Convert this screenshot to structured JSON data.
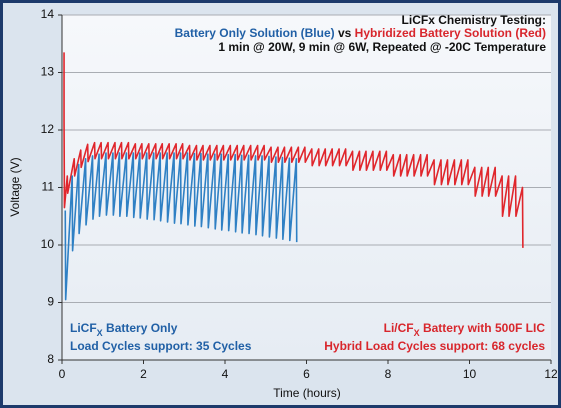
{
  "chart_data": {
    "type": "line",
    "title": "LiCFx Chemistry Testing:",
    "subtitle": [
      {
        "text": "Battery Only Solution (Blue)",
        "color": "#2160a6"
      },
      {
        "text": " vs ",
        "color": "#111111"
      },
      {
        "text": "Hybridized Battery Solution (Red)",
        "color": "#d8262c"
      }
    ],
    "subtitle2": "1 min @ 20W, 9 min @ 6W, Repeated @ -20C Temperature",
    "xlabel": "Time (hours)",
    "ylabel": "Voltage (V)",
    "xlim": [
      0,
      12
    ],
    "ylim": [
      8,
      14
    ],
    "xticks": [
      0,
      2,
      4,
      6,
      8,
      10,
      12
    ],
    "yticks": [
      8,
      9,
      10,
      11,
      12,
      13,
      14
    ],
    "grid": true,
    "annotations": [
      {
        "corner": "bottom-left",
        "color": "#2160a6",
        "lines": [
          [
            {
              "text": "LiCF"
            },
            {
              "text": "X",
              "sub": true
            },
            {
              "text": " Battery Only"
            }
          ],
          [
            {
              "text": "Load Cycles support: 35 Cycles"
            }
          ]
        ]
      },
      {
        "corner": "bottom-right",
        "color": "#d8262c",
        "lines": [
          [
            {
              "text": "Li/CF"
            },
            {
              "text": "X",
              "sub": true
            },
            {
              "text": " Battery with 500F LIC"
            }
          ],
          [
            {
              "text": "Hybrid Load Cycles support: 68 cycles"
            }
          ]
        ]
      }
    ],
    "series": [
      {
        "name": "Hybridized Battery Solution (Red)",
        "color": "#e0262c",
        "x": [
          0.05,
          0.05,
          0.06,
          0.13,
          0.14,
          0.3,
          0.31,
          0.46,
          0.47,
          0.63,
          0.64,
          0.8,
          0.81,
          0.96,
          0.97,
          1.13,
          1.14,
          1.3,
          1.31,
          1.46,
          1.47,
          1.63,
          1.64,
          1.8,
          1.81,
          1.96,
          1.97,
          2.13,
          2.14,
          2.3,
          2.31,
          2.46,
          2.47,
          2.63,
          2.64,
          2.8,
          2.81,
          2.96,
          2.97,
          3.13,
          3.14,
          3.3,
          3.31,
          3.46,
          3.47,
          3.63,
          3.64,
          3.8,
          3.81,
          3.96,
          3.97,
          4.13,
          4.14,
          4.3,
          4.31,
          4.46,
          4.47,
          4.63,
          4.64,
          4.8,
          4.81,
          4.96,
          4.97,
          5.13,
          5.14,
          5.3,
          5.31,
          5.46,
          5.47,
          5.63,
          5.64,
          5.8,
          5.81,
          5.96,
          5.97,
          6.13,
          6.14,
          6.3,
          6.31,
          6.46,
          6.47,
          6.63,
          6.64,
          6.8,
          6.81,
          6.96,
          6.97,
          7.13,
          7.14,
          7.3,
          7.31,
          7.46,
          7.47,
          7.63,
          7.64,
          7.8,
          7.81,
          7.96,
          7.97,
          8.13,
          8.14,
          8.3,
          8.31,
          8.46,
          8.47,
          8.63,
          8.64,
          8.8,
          8.81,
          8.96,
          8.97,
          9.13,
          9.14,
          9.3,
          9.31,
          9.46,
          9.47,
          9.63,
          9.64,
          9.8,
          9.81,
          9.96,
          9.97,
          10.13,
          10.14,
          10.3,
          10.31,
          10.46,
          10.47,
          10.63,
          10.64,
          10.8,
          10.81,
          10.96,
          10.97,
          11.13,
          11.14,
          11.3,
          11.31
        ],
        "values": [
          13.35,
          12.15,
          10.65,
          11.2,
          10.9,
          11.5,
          11.2,
          11.65,
          11.35,
          11.75,
          11.45,
          11.78,
          11.5,
          11.78,
          11.5,
          11.78,
          11.5,
          11.78,
          11.5,
          11.78,
          11.5,
          11.78,
          11.5,
          11.76,
          11.5,
          11.76,
          11.5,
          11.76,
          11.5,
          11.76,
          11.5,
          11.76,
          11.5,
          11.76,
          11.5,
          11.76,
          11.5,
          11.76,
          11.5,
          11.73,
          11.48,
          11.73,
          11.48,
          11.73,
          11.48,
          11.73,
          11.48,
          11.73,
          11.48,
          11.73,
          11.48,
          11.73,
          11.48,
          11.73,
          11.48,
          11.73,
          11.48,
          11.73,
          11.48,
          11.73,
          11.48,
          11.73,
          11.48,
          11.7,
          11.44,
          11.7,
          11.44,
          11.7,
          11.44,
          11.7,
          11.44,
          11.7,
          11.44,
          11.7,
          11.44,
          11.67,
          11.38,
          11.67,
          11.38,
          11.67,
          11.38,
          11.67,
          11.38,
          11.67,
          11.38,
          11.67,
          11.38,
          11.63,
          11.3,
          11.63,
          11.3,
          11.63,
          11.3,
          11.63,
          11.3,
          11.63,
          11.3,
          11.63,
          11.3,
          11.57,
          11.2,
          11.57,
          11.2,
          11.57,
          11.2,
          11.57,
          11.2,
          11.57,
          11.2,
          11.57,
          11.2,
          11.48,
          11.05,
          11.48,
          11.05,
          11.48,
          11.05,
          11.48,
          11.05,
          11.48,
          11.05,
          11.48,
          11.05,
          11.35,
          10.85,
          11.35,
          10.85,
          11.35,
          10.85,
          11.35,
          10.85,
          11.2,
          10.5,
          11.2,
          10.5,
          11.2,
          10.5,
          11.0,
          9.95
        ]
      },
      {
        "name": "Battery Only Solution (Blue)",
        "color": "#2f80c4",
        "x": [
          0.08,
          0.09,
          0.25,
          0.26,
          0.41,
          0.42,
          0.58,
          0.59,
          0.75,
          0.76,
          0.91,
          0.92,
          1.08,
          1.09,
          1.25,
          1.26,
          1.41,
          1.42,
          1.58,
          1.59,
          1.75,
          1.76,
          1.91,
          1.92,
          2.08,
          2.09,
          2.25,
          2.26,
          2.41,
          2.42,
          2.58,
          2.59,
          2.75,
          2.76,
          2.91,
          2.92,
          3.08,
          3.09,
          3.25,
          3.26,
          3.41,
          3.42,
          3.58,
          3.59,
          3.75,
          3.76,
          3.91,
          3.92,
          4.08,
          4.09,
          4.25,
          4.26,
          4.41,
          4.42,
          4.58,
          4.59,
          4.75,
          4.76,
          4.91,
          4.92,
          5.08,
          5.09,
          5.25,
          5.26,
          5.41,
          5.42,
          5.58,
          5.59,
          5.75,
          5.76
        ],
        "values": [
          10.6,
          9.05,
          11.2,
          9.9,
          11.4,
          10.2,
          11.5,
          10.35,
          11.55,
          10.45,
          11.58,
          10.5,
          11.6,
          10.52,
          11.6,
          10.52,
          11.6,
          10.5,
          11.6,
          10.5,
          11.6,
          10.48,
          11.6,
          10.47,
          11.6,
          10.45,
          11.6,
          10.44,
          11.6,
          10.42,
          11.6,
          10.4,
          11.6,
          10.38,
          11.6,
          10.37,
          11.6,
          10.35,
          11.59,
          10.33,
          11.59,
          10.32,
          11.58,
          10.3,
          11.58,
          10.28,
          11.58,
          10.26,
          11.57,
          10.25,
          11.57,
          10.23,
          11.56,
          10.21,
          11.56,
          10.2,
          11.55,
          10.18,
          11.55,
          10.16,
          11.54,
          10.14,
          11.53,
          10.12,
          11.52,
          10.1,
          11.51,
          10.08,
          11.5,
          10.05
        ]
      }
    ]
  }
}
